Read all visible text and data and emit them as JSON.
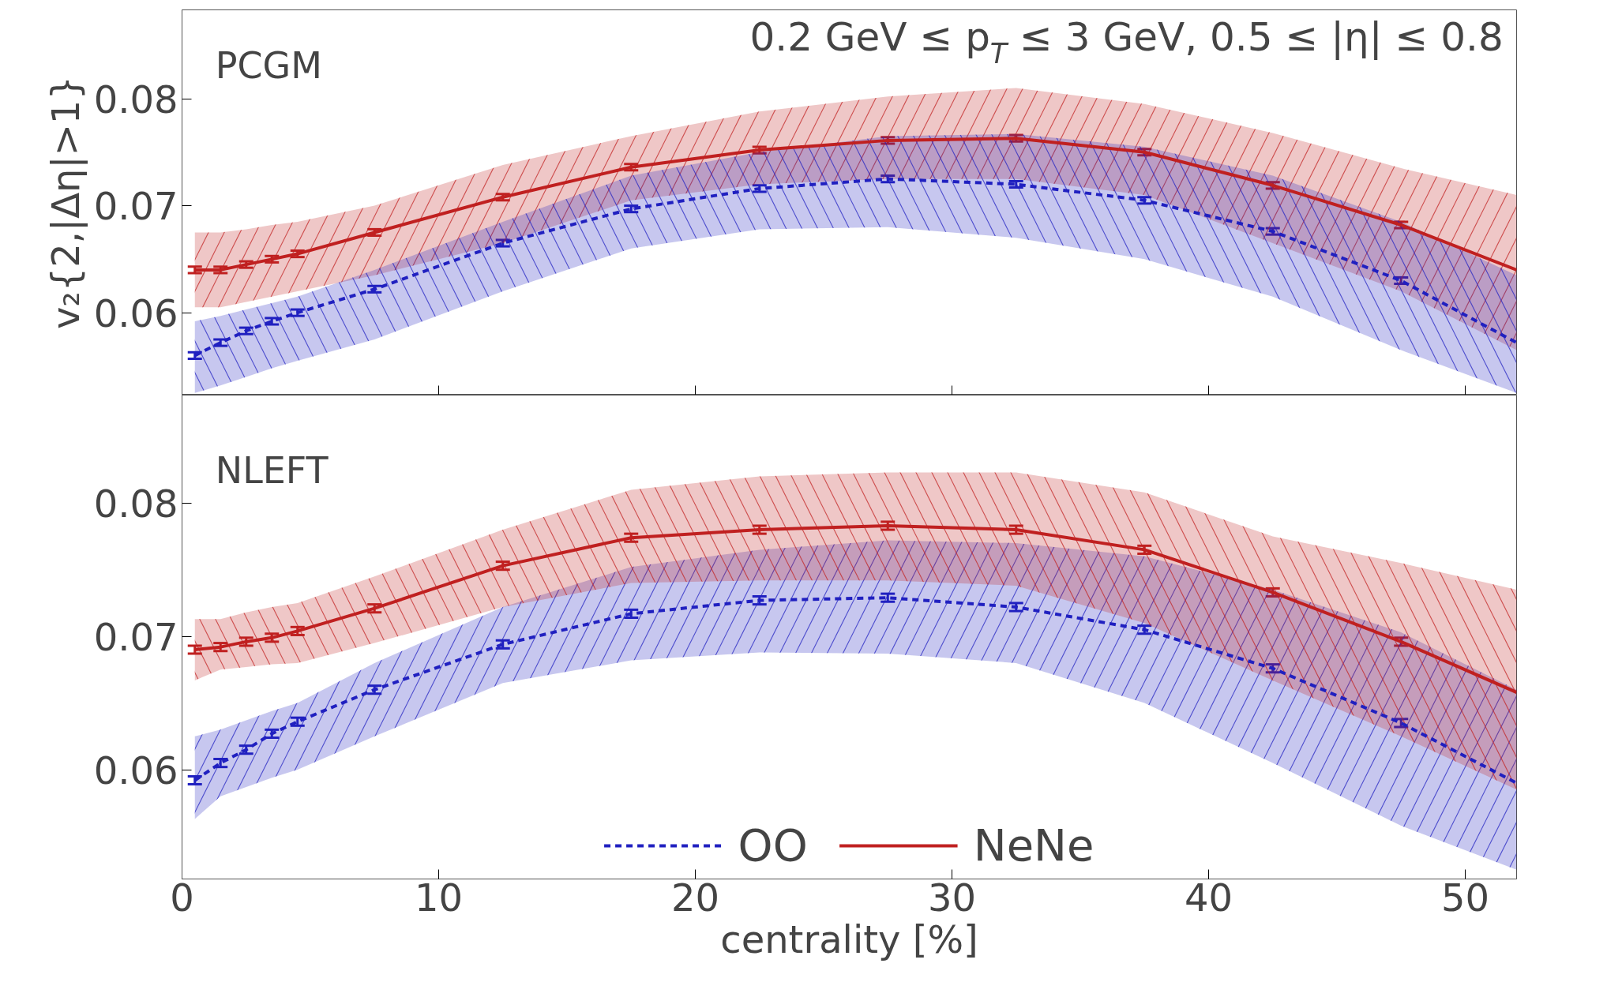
{
  "chart_data": [
    {
      "type": "line",
      "ylabel": "v₂{2,|Δη|>1}",
      "annotations": [
        "PCGM",
        "0.2 GeV ≤ p$_{T}$ ≤ 3 GeV, 0.5 ≤ |η| ≤ 0.8"
      ],
      "xlim": [
        0,
        52
      ],
      "ylim": [
        0.0523,
        0.0883
      ],
      "xticks": [
        0,
        10,
        20,
        30,
        40,
        50
      ],
      "yticks": [
        0.06,
        0.07,
        0.08
      ],
      "tick_labels": "y",
      "grid": false,
      "legend": false,
      "marker": "none",
      "x": [
        0.5,
        1.5,
        2.5,
        3.5,
        4.5,
        7.5,
        12.5,
        17.5,
        22.5,
        27.5,
        32.5,
        37.5,
        42.5,
        47.5,
        52
      ],
      "series": [
        {
          "color": "#c02020",
          "line_style": "solid",
          "values": [
            0.064,
            0.064,
            0.0645,
            0.065,
            0.0655,
            0.0675,
            0.0708,
            0.0736,
            0.0752,
            0.0761,
            0.0763,
            0.075,
            0.0719,
            0.0682,
            0.064
          ],
          "upper": [
            0.0675,
            0.0675,
            0.0678,
            0.0682,
            0.0685,
            0.07,
            0.0738,
            0.0765,
            0.0788,
            0.0802,
            0.081,
            0.0795,
            0.0768,
            0.0735,
            0.071
          ],
          "lower": [
            0.0605,
            0.0605,
            0.061,
            0.0615,
            0.062,
            0.0635,
            0.0665,
            0.0705,
            0.072,
            0.0725,
            0.0725,
            0.071,
            0.0665,
            0.062,
            0.0565
          ],
          "errors": [
            0.0003,
            0.0003,
            0.0003,
            0.0003,
            0.0003,
            0.0003,
            0.0003,
            0.0003,
            0.0003,
            0.0003,
            0.0003,
            0.0003,
            0.0003,
            0.0003,
            null
          ]
        },
        {
          "color": "#2020c0",
          "line_style": "dashed",
          "values": [
            0.056,
            0.0572,
            0.0583,
            0.0592,
            0.06,
            0.0622,
            0.0665,
            0.0697,
            0.0716,
            0.0725,
            0.072,
            0.0705,
            0.0676,
            0.063,
            0.0572
          ],
          "upper": [
            0.0592,
            0.0597,
            0.0603,
            0.0609,
            0.0615,
            0.064,
            0.0685,
            0.0728,
            0.075,
            0.0765,
            0.0767,
            0.0755,
            0.0728,
            0.0685,
            0.0635
          ],
          "lower": [
            0.0525,
            0.0532,
            0.054,
            0.0548,
            0.0555,
            0.0575,
            0.062,
            0.066,
            0.0678,
            0.068,
            0.067,
            0.065,
            0.0615,
            0.0565,
            0.0525
          ],
          "errors": [
            0.0003,
            0.0003,
            0.0003,
            0.0003,
            0.0003,
            0.0003,
            0.0003,
            0.0003,
            0.0003,
            0.0003,
            0.0003,
            0.0003,
            0.0003,
            0.0003,
            null
          ]
        }
      ]
    },
    {
      "type": "line",
      "xlabel": "centrality [%]",
      "annotations": [
        "NLEFT"
      ],
      "xlim": [
        0,
        52
      ],
      "ylim": [
        0.0518,
        0.0881
      ],
      "xticks": [
        0,
        10,
        20,
        30,
        40,
        50
      ],
      "yticks": [
        0.06,
        0.07,
        0.08
      ],
      "grid": false,
      "legend": "bottom",
      "marker": "none",
      "x": [
        0.5,
        1.5,
        2.5,
        3.5,
        4.5,
        7.5,
        12.5,
        17.5,
        22.5,
        27.5,
        32.5,
        37.5,
        42.5,
        47.5,
        52
      ],
      "series": [
        {
          "name": "OO",
          "color": "#2020c0",
          "line_style": "dashed",
          "values": [
            0.0592,
            0.0605,
            0.0615,
            0.0627,
            0.0636,
            0.066,
            0.0694,
            0.0717,
            0.0727,
            0.0729,
            0.0722,
            0.0705,
            0.0676,
            0.0635,
            0.059
          ],
          "upper": [
            0.0625,
            0.063,
            0.0637,
            0.0644,
            0.065,
            0.068,
            0.0722,
            0.0752,
            0.0765,
            0.0772,
            0.077,
            0.076,
            0.0735,
            0.0703,
            0.066
          ],
          "lower": [
            0.0563,
            0.058,
            0.0587,
            0.0594,
            0.06,
            0.0625,
            0.0665,
            0.0682,
            0.0688,
            0.0687,
            0.068,
            0.065,
            0.0605,
            0.0558,
            0.0525
          ],
          "errors": [
            0.0003,
            0.0003,
            0.0003,
            0.0003,
            0.0003,
            0.0003,
            0.0003,
            0.0003,
            0.0003,
            0.0003,
            0.0003,
            0.0003,
            0.0003,
            0.0003,
            null
          ]
        },
        {
          "name": "NeNe",
          "color": "#c02020",
          "line_style": "solid",
          "values": [
            0.069,
            0.0692,
            0.0696,
            0.0699,
            0.0704,
            0.0721,
            0.0753,
            0.0774,
            0.078,
            0.0783,
            0.078,
            0.0765,
            0.0733,
            0.0696,
            0.0658
          ],
          "upper": [
            0.0713,
            0.0713,
            0.0718,
            0.0722,
            0.0725,
            0.0745,
            0.078,
            0.081,
            0.082,
            0.0823,
            0.0823,
            0.0808,
            0.0775,
            0.0755,
            0.0735
          ],
          "lower": [
            0.0667,
            0.0675,
            0.0677,
            0.0679,
            0.068,
            0.0695,
            0.0722,
            0.074,
            0.0742,
            0.0742,
            0.0738,
            0.071,
            0.0667,
            0.0625,
            0.0585
          ],
          "errors": [
            0.0003,
            0.0003,
            0.0003,
            0.0003,
            0.0003,
            0.0003,
            0.0003,
            0.0003,
            0.0003,
            0.0003,
            0.0003,
            0.0003,
            0.0003,
            0.0003,
            null
          ]
        }
      ]
    }
  ]
}
